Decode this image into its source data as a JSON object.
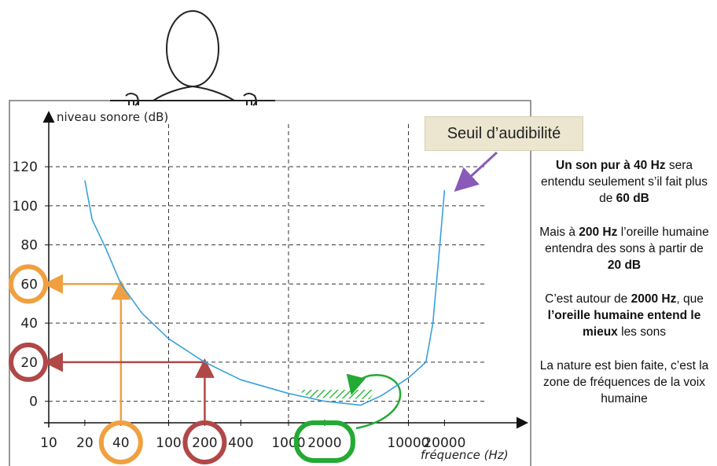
{
  "chart_data": {
    "type": "line",
    "title": "Seuil d’audibilité",
    "y_label": "niveau sonore (dB)",
    "x_label": "fréquence (Hz)",
    "x": [
      20,
      23,
      30,
      40,
      60,
      100,
      200,
      400,
      1000,
      2000,
      4000,
      6000,
      10000,
      14000,
      16000,
      18000,
      20000
    ],
    "series": [
      {
        "name": "Seuil d’audibilité",
        "color": "#3aa0dc",
        "values": [
          113,
          93,
          78,
          60,
          45,
          32,
          20,
          11,
          4,
          0,
          -2,
          3,
          12,
          20,
          40,
          75,
          108
        ]
      }
    ],
    "xlim": [
      10,
      90000
    ],
    "ylim": [
      -11,
      145
    ],
    "x_log": true,
    "xticks": [
      10,
      20,
      40,
      100,
      200,
      400,
      1000,
      2000,
      10000,
      20000
    ],
    "yticks": [
      0,
      20,
      40,
      60,
      80,
      100,
      120
    ],
    "x_grid": [
      100,
      1000,
      10000
    ],
    "grid": true
  },
  "notes": [
    [
      {
        "text": "Un son pur à 40 Hz",
        "bold": true
      },
      {
        "text": " sera entendu seulement s’il fait plus de ",
        "bold": false
      },
      {
        "text": "60 dB",
        "bold": true
      }
    ],
    [
      {
        "text": "Mais à ",
        "bold": false
      },
      {
        "text": "200 Hz",
        "bold": true
      },
      {
        "text": " l’oreille humaine entendra des sons à partir de ",
        "bold": false
      },
      {
        "text": "20 dB",
        "bold": true
      }
    ],
    [
      {
        "text": "C’est autour de ",
        "bold": false
      },
      {
        "text": "2000 Hz",
        "bold": true
      },
      {
        "text": ", que ",
        "bold": false
      },
      {
        "text": "l’oreille humaine entend le mieux",
        "bold": true
      },
      {
        "text": " les sons",
        "bold": false
      }
    ],
    [
      {
        "text": "La nature est bien faite, c’est la zone de fréquences de la voix humaine",
        "bold": false
      }
    ]
  ]
}
